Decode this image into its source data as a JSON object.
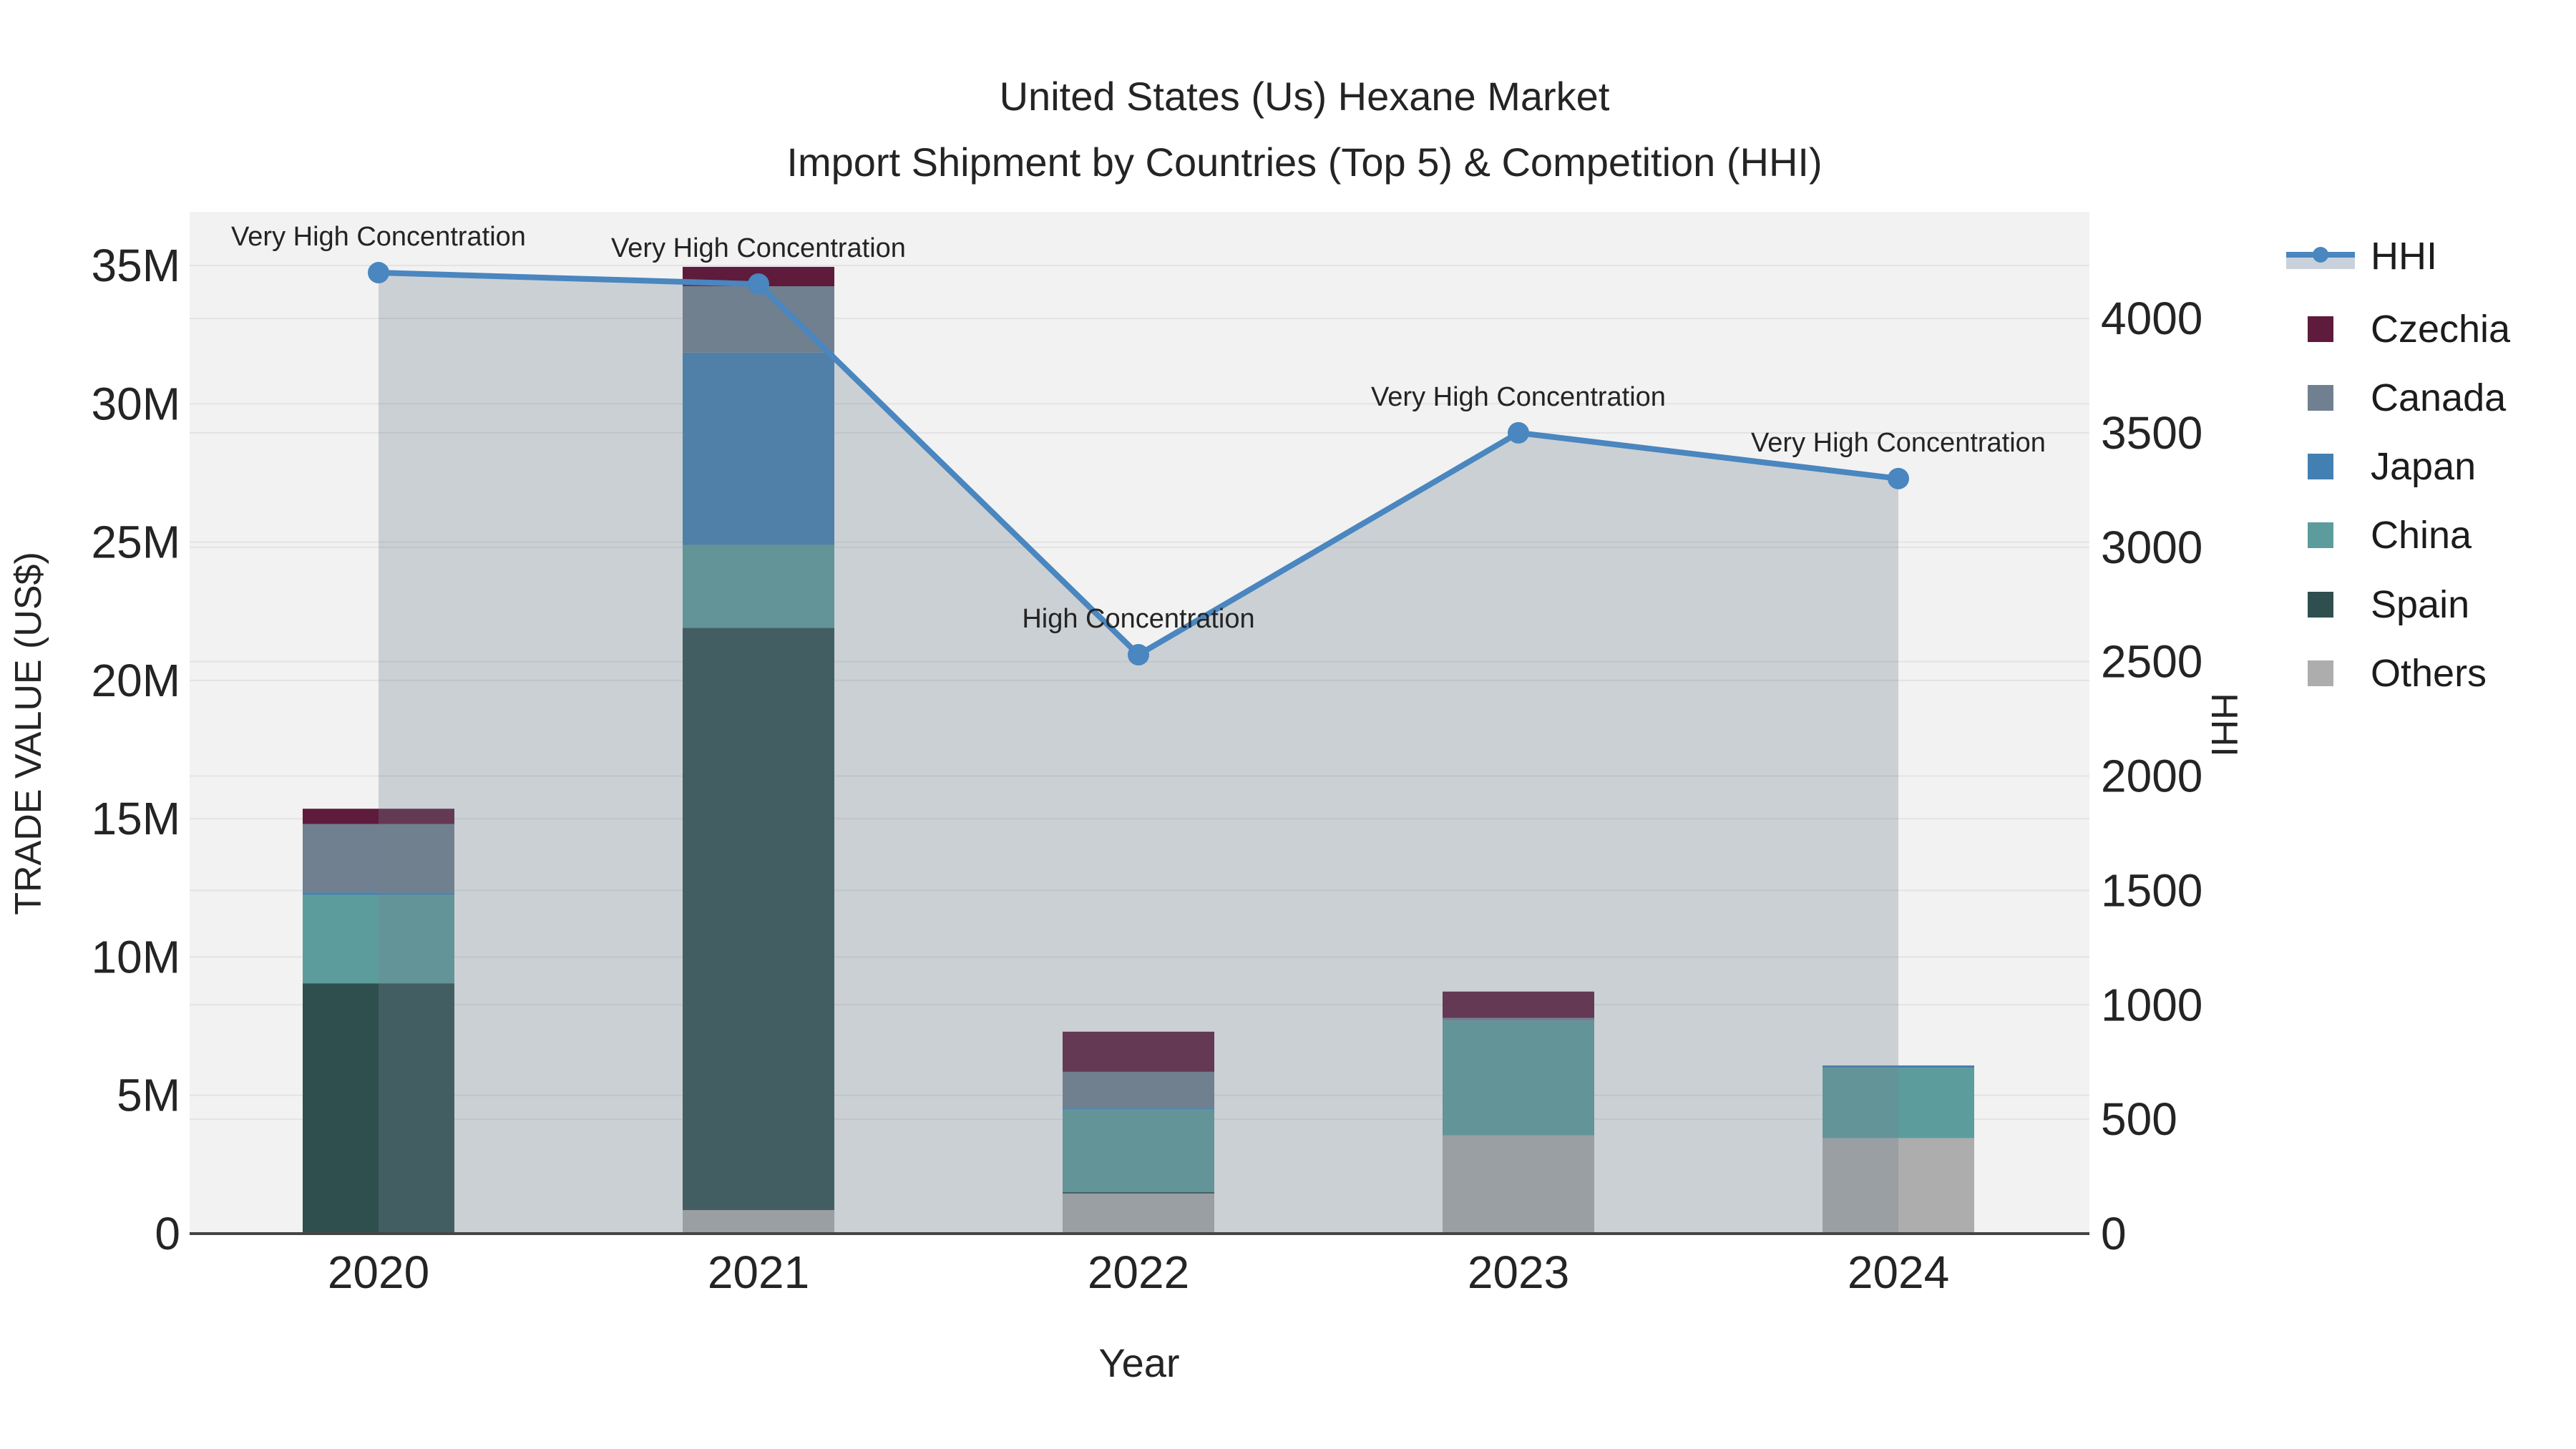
{
  "title": {
    "line1": "United States (Us) Hexane Market",
    "line2": "Import Shipment by Countries (Top 5) & Competition (HHI)"
  },
  "axes": {
    "x": {
      "title": "Year"
    },
    "y_left": {
      "title": "TRADE VALUE (US$)",
      "tick_labels": [
        "0",
        "5M",
        "10M",
        "15M",
        "20M",
        "25M",
        "30M",
        "35M"
      ]
    },
    "y_right": {
      "title": "HHI",
      "tick_labels": [
        "0",
        "500",
        "1000",
        "1500",
        "2000",
        "2500",
        "3000",
        "3500",
        "4000"
      ]
    }
  },
  "legend": {
    "items": [
      {
        "label": "HHI",
        "type": "line"
      },
      {
        "label": "Czechia",
        "type": "square",
        "color_key": "czechia"
      },
      {
        "label": "Canada",
        "type": "square",
        "color_key": "canada"
      },
      {
        "label": "Japan",
        "type": "square",
        "color_key": "japan"
      },
      {
        "label": "China",
        "type": "square",
        "color_key": "china"
      },
      {
        "label": "Spain",
        "type": "square",
        "color_key": "spain"
      },
      {
        "label": "Others",
        "type": "square",
        "color_key": "others"
      }
    ]
  },
  "colors": {
    "czechia": "#5e1b3b",
    "canada": "#708090",
    "japan": "#4380b2",
    "china": "#5d9c9c",
    "spain": "#2f4f4f",
    "others": "#adadad",
    "hhi": "#4a86bf",
    "band_fill": "rgba(112,128,144,0.30)",
    "legend_band": "#c9d2dc",
    "plot_bg": "#f2f2f2",
    "grid": "#e3e3e3",
    "axis_line": "#454545",
    "text": "#242424"
  },
  "chart_data": {
    "type": "bar+line",
    "categories": [
      "2020",
      "2021",
      "2022",
      "2023",
      "2024"
    ],
    "bar_value_unit": "million US$ (left axis TRADE VALUE (US$), 0 to 35M)",
    "series": [
      {
        "name": "Others",
        "color_key": "others",
        "values_m": [
          0,
          0.85,
          1.45,
          3.55,
          3.45
        ]
      },
      {
        "name": "Spain",
        "color_key": "spain",
        "values_m": [
          9.05,
          21.05,
          0.05,
          0,
          0
        ]
      },
      {
        "name": "China",
        "color_key": "china",
        "values_m": [
          3.2,
          3.0,
          3.0,
          4.15,
          2.55
        ]
      },
      {
        "name": "Japan",
        "color_key": "japan",
        "values_m": [
          0.08,
          6.95,
          0.05,
          0,
          0.08
        ]
      },
      {
        "name": "Canada",
        "color_key": "canada",
        "values_m": [
          2.48,
          2.4,
          1.3,
          0.1,
          0
        ]
      },
      {
        "name": "Czechia",
        "color_key": "czechia",
        "values_m": [
          0.55,
          0.7,
          1.45,
          0.95,
          0
        ]
      }
    ],
    "bar_totals_m": [
      15.36,
      34.95,
      7.3,
      8.75,
      6.08
    ],
    "hhi_line": {
      "name": "HHI",
      "axis": "right",
      "values": [
        4200,
        4150,
        2530,
        3500,
        3300
      ]
    },
    "annotations": [
      "Very High Concentration",
      "Very High Concentration",
      "High Concentration",
      "Very High Concentration",
      "Very High Concentration"
    ],
    "y_left_axis": {
      "ticks_m": [
        0,
        5,
        10,
        15,
        20,
        25,
        30,
        35
      ]
    },
    "y_right_axis": {
      "ticks": [
        0,
        500,
        1000,
        1500,
        2000,
        2500,
        3000,
        3500,
        4000
      ]
    },
    "grid": true,
    "legend_position": "right"
  }
}
